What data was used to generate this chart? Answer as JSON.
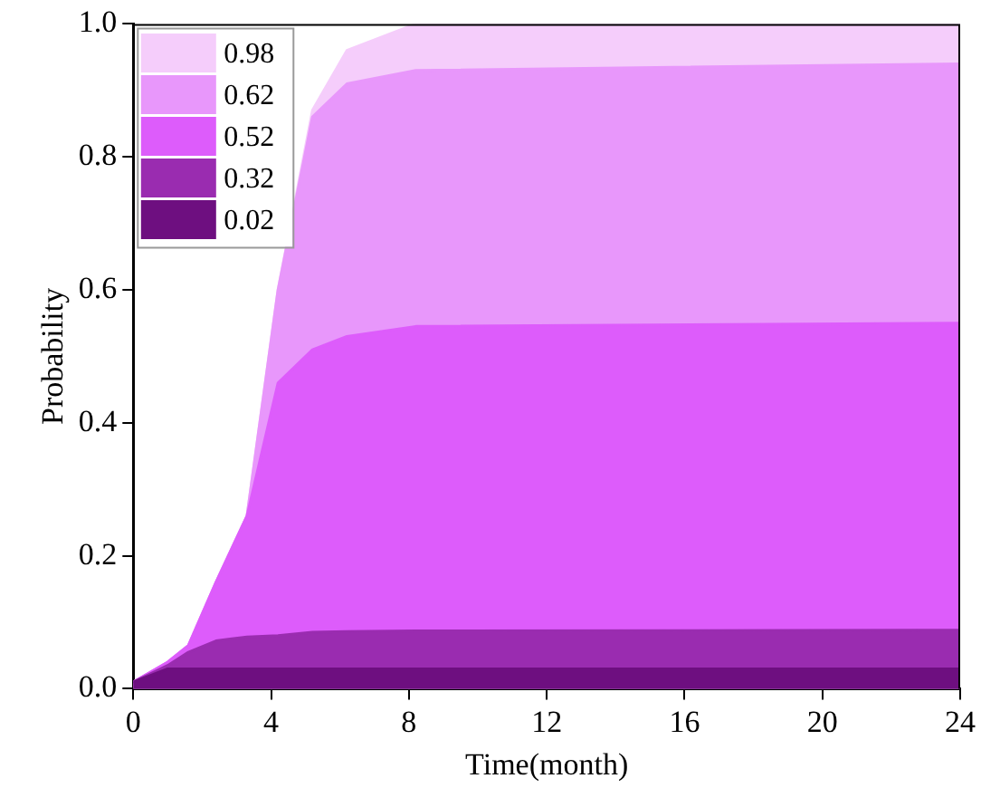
{
  "chart_data": {
    "type": "area",
    "xlabel": "Time(month)",
    "ylabel": "Probability",
    "x": [
      0,
      1,
      1.6,
      2.4,
      3.3,
      4.2,
      5.2,
      6.2,
      8.2,
      24
    ],
    "series": [
      {
        "name": "0.98",
        "color": "#f5cdfb",
        "values": [
          0.01,
          0.04,
          0.065,
          0.16,
          0.26,
          0.6,
          0.87,
          0.96,
          1.0,
          1.0
        ]
      },
      {
        "name": "0.62",
        "color": "#e897fb",
        "values": [
          0.01,
          0.04,
          0.065,
          0.16,
          0.26,
          0.6,
          0.86,
          0.91,
          0.93,
          0.94
        ]
      },
      {
        "name": "0.52",
        "color": "#dd5cfb",
        "values": [
          0.01,
          0.04,
          0.065,
          0.16,
          0.26,
          0.46,
          0.51,
          0.53,
          0.545,
          0.55
        ]
      },
      {
        "name": "0.32",
        "color": "#9a2cb0",
        "values": [
          0.01,
          0.035,
          0.055,
          0.072,
          0.078,
          0.08,
          0.085,
          0.086,
          0.087,
          0.088
        ]
      },
      {
        "name": "0.02",
        "color": "#6e0f80",
        "values": [
          0.01,
          0.03,
          0.03,
          0.03,
          0.03,
          0.03,
          0.03,
          0.03,
          0.03,
          0.03
        ]
      }
    ],
    "xlim": [
      0,
      24
    ],
    "xticks": [
      0,
      4,
      8,
      12,
      16,
      20,
      24
    ],
    "ylim": [
      0,
      1
    ],
    "yticks": [
      {
        "value": 0,
        "label": "0.0"
      },
      {
        "value": 0.2,
        "label": "0.2"
      },
      {
        "value": 0.4,
        "label": "0.4"
      },
      {
        "value": 0.6,
        "label": "0.6"
      },
      {
        "value": 0.8,
        "label": "0.8"
      },
      {
        "value": 1,
        "label": "1.0"
      }
    ],
    "grid": false,
    "legend": "top left",
    "marker": "none",
    "line_style": "solid"
  }
}
